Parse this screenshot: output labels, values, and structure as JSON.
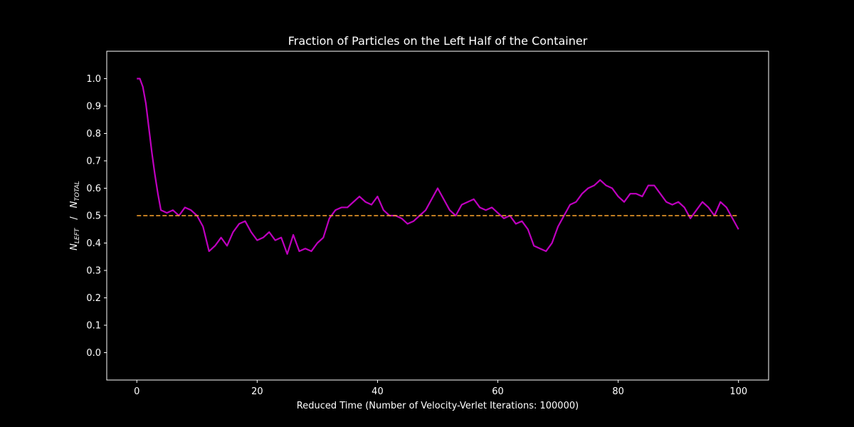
{
  "chart_data": {
    "type": "line",
    "title": "Fraction of Particles on the Left Half of the Container",
    "xlabel": "Reduced Time (Number of Velocity-Verlet Iterations: 100000)",
    "ylabel": {
      "numerator": "N",
      "numerator_sub": "LEFT",
      "separator": "/",
      "denominator": "N",
      "denominator_sub": "TOTAL"
    },
    "xlim": [
      -5,
      105
    ],
    "ylim": [
      -0.1,
      1.1
    ],
    "xticks": [
      0,
      20,
      40,
      60,
      80,
      100
    ],
    "yticks": [
      0.0,
      0.1,
      0.2,
      0.3,
      0.4,
      0.5,
      0.6,
      0.7,
      0.8,
      0.9,
      1.0
    ],
    "grid": false,
    "background": "#000000",
    "foreground": "#ffffff",
    "series": [
      {
        "color": "#bf00bf",
        "style": "solid",
        "x": [
          0,
          0.5,
          1,
          1.5,
          2,
          2.5,
          3,
          3.5,
          4,
          5,
          6,
          7,
          8,
          9,
          10,
          11,
          12,
          13,
          14,
          15,
          16,
          17,
          18,
          19,
          20,
          21,
          22,
          23,
          24,
          25,
          26,
          27,
          28,
          29,
          30,
          31,
          32,
          33,
          34,
          35,
          36,
          37,
          38,
          39,
          40,
          41,
          42,
          43,
          44,
          45,
          46,
          47,
          48,
          49,
          50,
          51,
          52,
          53,
          54,
          55,
          56,
          57,
          58,
          59,
          60,
          61,
          62,
          63,
          64,
          65,
          66,
          67,
          68,
          69,
          70,
          71,
          72,
          73,
          74,
          75,
          76,
          77,
          78,
          79,
          80,
          81,
          82,
          83,
          84,
          85,
          86,
          87,
          88,
          89,
          90,
          91,
          92,
          93,
          94,
          95,
          96,
          97,
          98,
          99,
          100
        ],
        "y": [
          1.0,
          1.0,
          0.97,
          0.91,
          0.82,
          0.73,
          0.65,
          0.58,
          0.52,
          0.51,
          0.52,
          0.5,
          0.53,
          0.52,
          0.5,
          0.46,
          0.37,
          0.39,
          0.42,
          0.39,
          0.44,
          0.47,
          0.48,
          0.44,
          0.41,
          0.42,
          0.44,
          0.41,
          0.42,
          0.36,
          0.43,
          0.37,
          0.38,
          0.37,
          0.4,
          0.42,
          0.49,
          0.52,
          0.53,
          0.53,
          0.55,
          0.57,
          0.55,
          0.54,
          0.57,
          0.52,
          0.5,
          0.5,
          0.49,
          0.47,
          0.48,
          0.5,
          0.52,
          0.56,
          0.6,
          0.56,
          0.52,
          0.5,
          0.54,
          0.55,
          0.56,
          0.53,
          0.52,
          0.53,
          0.51,
          0.49,
          0.5,
          0.47,
          0.48,
          0.45,
          0.39,
          0.38,
          0.37,
          0.4,
          0.46,
          0.5,
          0.54,
          0.55,
          0.58,
          0.6,
          0.61,
          0.63,
          0.61,
          0.6,
          0.57,
          0.55,
          0.58,
          0.58,
          0.57,
          0.61,
          0.61,
          0.58,
          0.55,
          0.54,
          0.55,
          0.53,
          0.49,
          0.52,
          0.55,
          0.53,
          0.5,
          0.55,
          0.53,
          0.49,
          0.45
        ]
      },
      {
        "color": "#ffa52c",
        "style": "dashed",
        "x": [
          0,
          100
        ],
        "y": [
          0.5,
          0.5
        ]
      }
    ]
  }
}
